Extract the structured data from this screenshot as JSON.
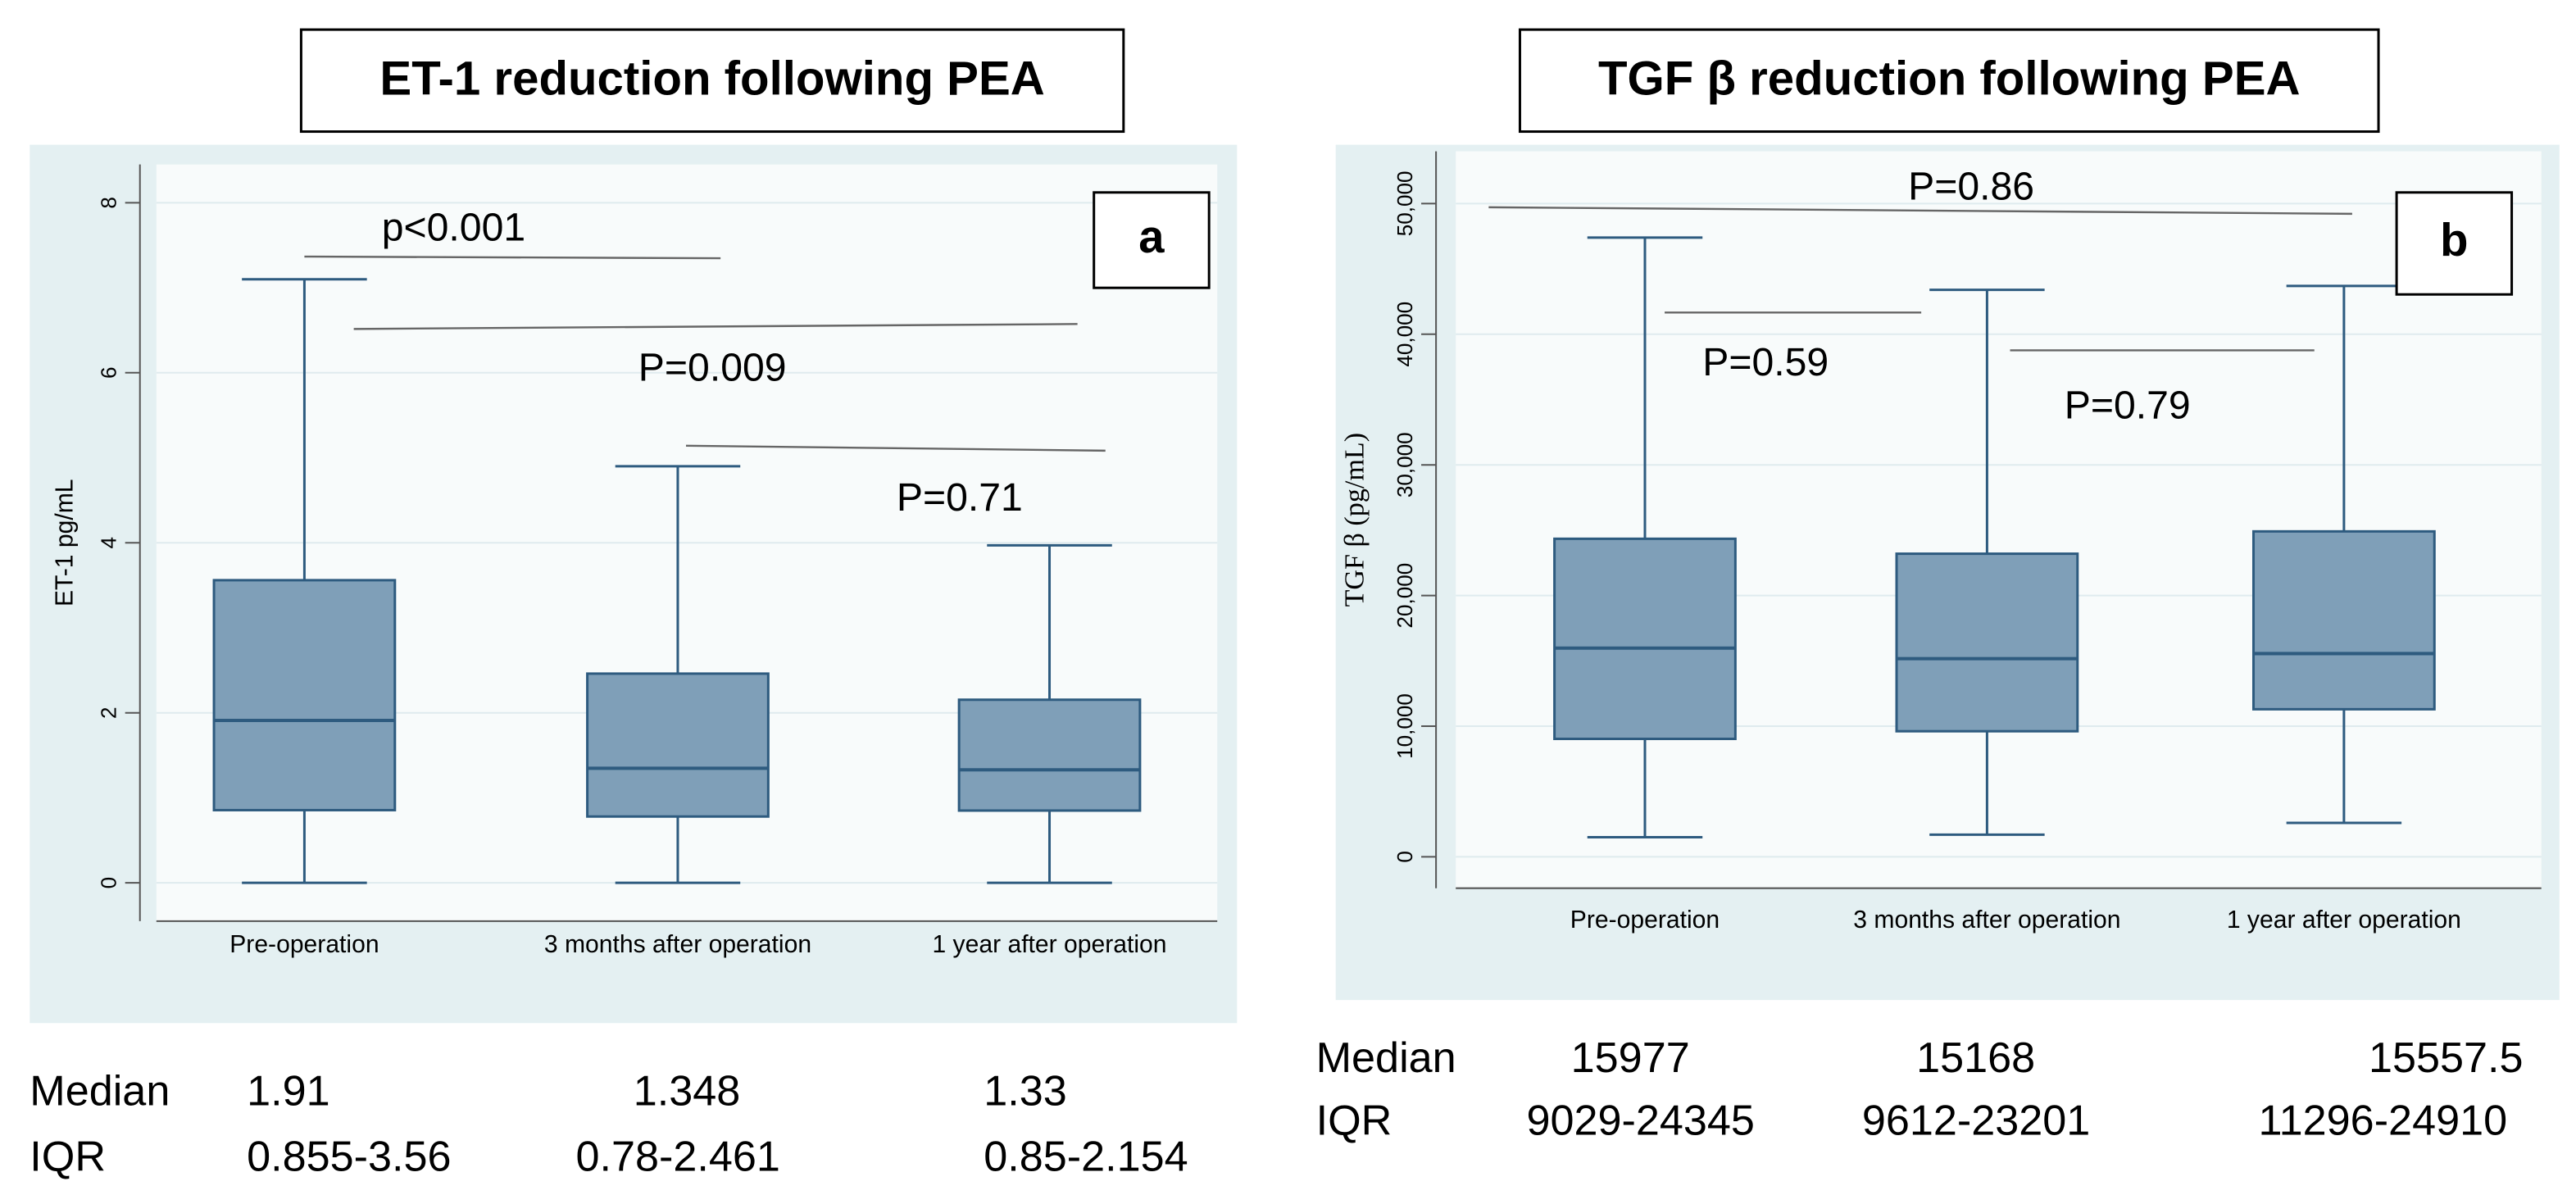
{
  "chart_data": [
    {
      "type": "box",
      "title": "ET-1 reduction following PEA",
      "ylabel": "ET-1 pg/mL",
      "panel_label": "a",
      "categories": [
        "Pre-operation",
        "3 months  after operation",
        "1 year after operation"
      ],
      "low": [
        0,
        0,
        0
      ],
      "q1": [
        0.855,
        0.78,
        0.85
      ],
      "median": [
        1.91,
        1.348,
        1.33
      ],
      "q3": [
        3.56,
        2.461,
        2.154
      ],
      "high": [
        7.1,
        4.9,
        3.97
      ],
      "color": "#7f9fb8",
      "ylim": [
        -0.45,
        8.45
      ],
      "yticks": [
        0,
        2,
        4,
        6,
        8
      ],
      "grid": true,
      "annotations": [
        "p<0.001",
        "P=0.009",
        "P=0.71"
      ],
      "table_labels": [
        "Median",
        "IQR"
      ],
      "iqr": [
        "0.855-3.56",
        "0.78-2.461",
        "0.85-2.154"
      ]
    },
    {
      "type": "box",
      "title": "TGF β reduction following PEA",
      "ylabel": "TGF β (pg/mL)",
      "panel_label": "b",
      "categories": [
        "Pre-operation",
        "3 months  after operation",
        "1 year after operation"
      ],
      "low": [
        1500,
        1700,
        2600
      ],
      "q1": [
        9029,
        9612,
        11296
      ],
      "median": [
        15977,
        15168,
        15557.5
      ],
      "q3": [
        24345,
        23201,
        24910
      ],
      "high": [
        47400,
        43400,
        43700
      ],
      "color": "#7f9fb8",
      "ylim": [
        -2400,
        54000
      ],
      "yticks": [
        0,
        {
          "value": 10000,
          "label": "10,000"
        },
        {
          "value": 20000,
          "label": "20,000"
        },
        {
          "value": 30000,
          "label": "30,000"
        },
        {
          "value": 40000,
          "label": "40,000"
        },
        {
          "value": 50000,
          "label": "50,000"
        }
      ],
      "grid": true,
      "annotations": [
        "P=0.86",
        "P=0.59",
        "P=0.79"
      ],
      "table_labels": [
        "Median",
        "IQR"
      ],
      "iqr": [
        "9029-24345",
        "9612-23201",
        "11296-24910"
      ]
    }
  ]
}
